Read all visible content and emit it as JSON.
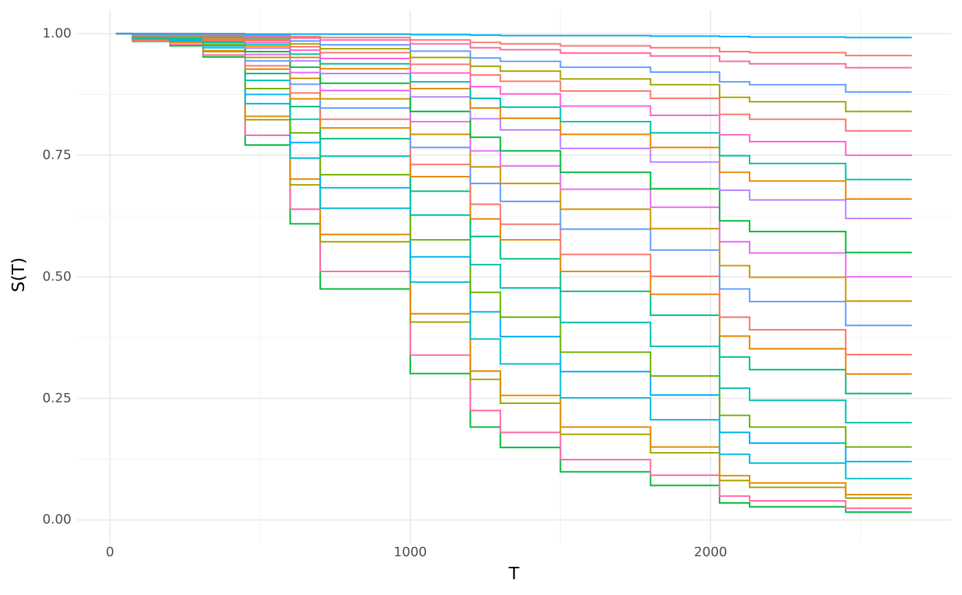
{
  "chart_data": {
    "type": "step",
    "x_label": "T",
    "y_label": "S(T)",
    "xlim": [
      -110,
      2803
    ],
    "ylim": [
      -0.047,
      1.048
    ],
    "xticks": [
      0,
      1000,
      2000
    ],
    "xminorticks": [
      500,
      1500,
      2500
    ],
    "yticks": [
      {
        "value": 0,
        "label": "0.00"
      },
      0.25,
      {
        "value": 0.5,
        "label": "0.50"
      },
      0.75,
      {
        "value": 1,
        "label": "1.00"
      }
    ],
    "yminorticks": [
      0.125,
      0.375,
      0.625,
      0.875
    ],
    "grid": true,
    "x": [
      20,
      75,
      200,
      310,
      450,
      600,
      700,
      1000,
      1200,
      1300,
      1500,
      1800,
      2030,
      2130,
      2450,
      2670
    ],
    "series": [
      {
        "color": "#00BA38",
        "values": [
          1,
          0.984,
          0.975,
          0.952,
          0.771,
          0.609,
          0.475,
          0.301,
          0.191,
          0.149,
          0.099,
          0.071,
          0.035,
          0.027,
          0.016,
          0.016
        ]
      },
      {
        "color": "#FF67A4",
        "values": [
          1,
          0.985,
          0.978,
          0.956,
          0.791,
          0.639,
          0.511,
          0.339,
          0.225,
          0.18,
          0.124,
          0.092,
          0.049,
          0.039,
          0.024,
          0.024
        ]
      },
      {
        "color": "#A3A500",
        "values": [
          1,
          0.988,
          0.982,
          0.963,
          0.823,
          0.689,
          0.572,
          0.407,
          0.289,
          0.24,
          0.176,
          0.138,
          0.081,
          0.067,
          0.045,
          0.045
        ]
      },
      {
        "color": "#E58700",
        "values": [
          1,
          0.988,
          0.982,
          0.965,
          0.83,
          0.701,
          0.587,
          0.424,
          0.306,
          0.256,
          0.191,
          0.15,
          0.091,
          0.076,
          0.052,
          0.052
        ]
      },
      {
        "color": "#00BCD8",
        "values": [
          1,
          0.99,
          0.985,
          0.971,
          0.856,
          0.744,
          0.641,
          0.489,
          0.372,
          0.321,
          0.251,
          0.206,
          0.135,
          0.117,
          0.085,
          0.085
        ]
      },
      {
        "color": "#00B0F6",
        "values": [
          1,
          0.992,
          0.987,
          0.975,
          0.875,
          0.776,
          0.683,
          0.541,
          0.428,
          0.377,
          0.305,
          0.257,
          0.18,
          0.158,
          0.12,
          0.12
        ]
      },
      {
        "color": "#6BB100",
        "values": [
          1,
          0.992,
          0.989,
          0.977,
          0.887,
          0.796,
          0.71,
          0.576,
          0.468,
          0.417,
          0.345,
          0.296,
          0.215,
          0.191,
          0.15,
          0.15
        ]
      },
      {
        "color": "#00C0AF",
        "values": [
          1,
          0.994,
          0.99,
          0.981,
          0.904,
          0.824,
          0.748,
          0.627,
          0.525,
          0.477,
          0.406,
          0.357,
          0.271,
          0.246,
          0.2,
          0.2
        ]
      },
      {
        "color": "#00BF7D",
        "values": [
          1,
          0.995,
          0.992,
          0.984,
          0.918,
          0.85,
          0.784,
          0.676,
          0.583,
          0.537,
          0.47,
          0.421,
          0.335,
          0.309,
          0.26,
          0.26
        ]
      },
      {
        "color": "#E58700",
        "values": [
          1,
          0.995,
          0.993,
          0.986,
          0.927,
          0.866,
          0.806,
          0.706,
          0.619,
          0.576,
          0.511,
          0.464,
          0.378,
          0.352,
          0.3,
          0.3
        ]
      },
      {
        "color": "#F8766D",
        "values": [
          1,
          0.996,
          0.994,
          0.987,
          0.934,
          0.878,
          0.824,
          0.731,
          0.649,
          0.608,
          0.546,
          0.501,
          0.417,
          0.391,
          0.34,
          0.34
        ]
      },
      {
        "color": "#619CFF",
        "values": [
          1,
          0.996,
          0.995,
          0.989,
          0.944,
          0.896,
          0.847,
          0.766,
          0.692,
          0.655,
          0.598,
          0.555,
          0.475,
          0.449,
          0.4,
          0.4
        ]
      },
      {
        "color": "#C99800",
        "values": [
          1,
          0.997,
          0.995,
          0.99,
          0.951,
          0.908,
          0.866,
          0.793,
          0.726,
          0.692,
          0.639,
          0.599,
          0.523,
          0.499,
          0.45,
          0.45
        ]
      },
      {
        "color": "#E76BF3",
        "values": [
          1,
          0.997,
          0.996,
          0.992,
          0.957,
          0.92,
          0.883,
          0.819,
          0.759,
          0.728,
          0.68,
          0.643,
          0.572,
          0.549,
          0.5,
          0.5
        ]
      },
      {
        "color": "#00BA38",
        "values": [
          1,
          0.998,
          0.996,
          0.993,
          0.963,
          0.931,
          0.898,
          0.84,
          0.787,
          0.759,
          0.715,
          0.681,
          0.615,
          0.593,
          0.55,
          0.55
        ]
      },
      {
        "color": "#B983FF",
        "values": [
          1,
          0.998,
          0.997,
          0.994,
          0.97,
          0.944,
          0.918,
          0.87,
          0.825,
          0.802,
          0.764,
          0.736,
          0.678,
          0.658,
          0.62,
          0.62
        ]
      },
      {
        "color": "#E58700",
        "values": [
          1,
          0.998,
          0.998,
          0.995,
          0.974,
          0.951,
          0.928,
          0.887,
          0.847,
          0.826,
          0.793,
          0.766,
          0.715,
          0.697,
          0.66,
          0.66
        ]
      },
      {
        "color": "#00C0AF",
        "values": [
          1,
          0.999,
          0.998,
          0.996,
          0.978,
          0.958,
          0.938,
          0.901,
          0.867,
          0.849,
          0.819,
          0.796,
          0.749,
          0.733,
          0.7,
          0.7
        ]
      },
      {
        "color": "#FD61D1",
        "values": [
          1,
          0.999,
          0.998,
          0.997,
          0.982,
          0.966,
          0.949,
          0.919,
          0.891,
          0.876,
          0.851,
          0.832,
          0.792,
          0.778,
          0.75,
          0.75
        ]
      },
      {
        "color": "#F8766D",
        "values": [
          1,
          0.999,
          0.999,
          0.997,
          0.986,
          0.973,
          0.961,
          0.937,
          0.915,
          0.902,
          0.882,
          0.867,
          0.834,
          0.824,
          0.8,
          0.8
        ]
      },
      {
        "color": "#A3A500",
        "values": [
          1,
          0.999,
          0.999,
          0.998,
          0.989,
          0.979,
          0.969,
          0.951,
          0.933,
          0.923,
          0.907,
          0.895,
          0.869,
          0.86,
          0.84,
          0.84
        ]
      },
      {
        "color": "#619CFF",
        "values": [
          1,
          0.999,
          0.999,
          0.998,
          0.992,
          0.985,
          0.977,
          0.964,
          0.95,
          0.943,
          0.931,
          0.921,
          0.901,
          0.895,
          0.88,
          0.88
        ]
      },
      {
        "color": "#FF67A4",
        "values": [
          1,
          1,
          1,
          0.999,
          0.995,
          0.991,
          0.987,
          0.979,
          0.971,
          0.967,
          0.96,
          0.954,
          0.943,
          0.938,
          0.93,
          0.93
        ]
      },
      {
        "color": "#F8766D",
        "values": [
          1,
          1,
          1,
          0.999,
          0.997,
          0.994,
          0.992,
          0.987,
          0.982,
          0.979,
          0.975,
          0.971,
          0.963,
          0.961,
          0.955,
          0.955
        ]
      },
      {
        "color": "#00B0F6",
        "values": [
          1,
          1,
          1,
          1,
          0.999,
          0.999,
          0.999,
          0.998,
          0.997,
          0.996,
          0.996,
          0.995,
          0.994,
          0.993,
          0.992,
          0.992
        ]
      }
    ]
  }
}
